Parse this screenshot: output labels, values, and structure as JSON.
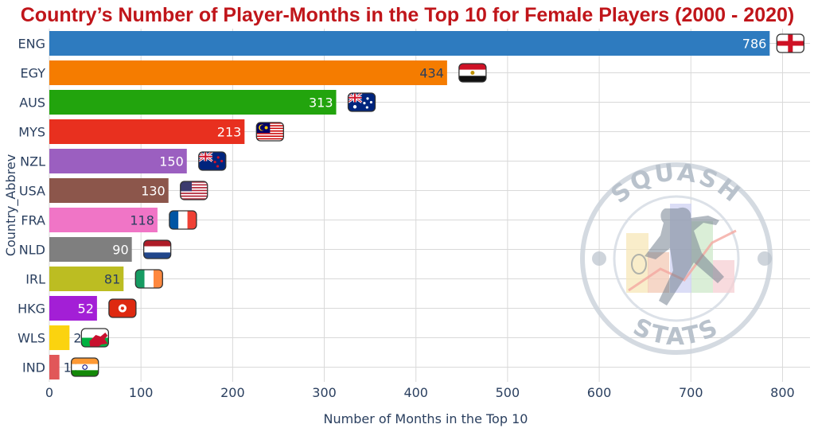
{
  "chart_data": {
    "type": "bar",
    "orientation": "horizontal",
    "title": "Country’s Number of Player-Months in the Top 10 for Female Players (2000 - 2020)",
    "xlabel": "Number of Months in the Top 10",
    "ylabel": "Country_Abbrev",
    "xlim": [
      0,
      830
    ],
    "xticks": [
      0,
      100,
      200,
      300,
      400,
      500,
      600,
      700,
      800
    ],
    "grid": true,
    "categories": [
      "ENG",
      "EGY",
      "AUS",
      "MYS",
      "NZL",
      "USA",
      "FRA",
      "NLD",
      "IRL",
      "HKG",
      "WLS",
      "IND"
    ],
    "values": [
      786,
      434,
      313,
      213,
      150,
      130,
      118,
      90,
      81,
      52,
      22,
      11
    ],
    "bar_colors": [
      "#2e7bbf",
      "#f57c00",
      "#22a40d",
      "#e8301f",
      "#9b5fc0",
      "#8c564b",
      "#f075c6",
      "#7f7f7f",
      "#bcbd22",
      "#a31fd6",
      "#fbd30f",
      "#e15759"
    ],
    "label_colors": [
      "#ffffff",
      "#2a3f5f",
      "#ffffff",
      "#ffffff",
      "#ffffff",
      "#ffffff",
      "#2a3f5f",
      "#ffffff",
      "#2a3f5f",
      "#ffffff",
      "#2a3f5f",
      "#2a3f5f"
    ],
    "flags": [
      "england-flag",
      "egypt-flag",
      "australia-flag",
      "malaysia-flag",
      "new-zealand-flag",
      "usa-flag",
      "france-flag",
      "netherlands-flag",
      "ireland-flag",
      "hong-kong-flag",
      "wales-flag",
      "india-flag"
    ]
  },
  "watermark": {
    "top_text": "SQUASH",
    "bottom_text": "STATS"
  },
  "colors": {
    "title": "#c0151a",
    "axis_text": "#2a3f5f",
    "grid": "#d9d9d9"
  }
}
